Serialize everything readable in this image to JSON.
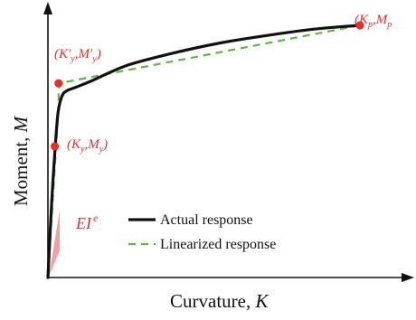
{
  "chart_data": {
    "type": "line",
    "xlabel": "Curvature, K",
    "ylabel": "Moment, M",
    "xlim": [
      0,
      1.0
    ],
    "ylim": [
      0,
      1.05
    ],
    "grid": false,
    "legend_position": "bottom-right",
    "series": [
      {
        "name": "Actual response",
        "style": "solid",
        "color": "#111111",
        "x": [
          0.0,
          0.012,
          0.025,
          0.033,
          0.045,
          0.06,
          0.09,
          0.14,
          0.25,
          0.4,
          0.55,
          0.7,
          0.85,
          0.995
        ],
        "y": [
          0.0,
          0.3,
          0.55,
          0.66,
          0.72,
          0.74,
          0.755,
          0.78,
          0.84,
          0.89,
          0.93,
          0.96,
          0.985,
          1.0
        ]
      },
      {
        "name": "Linearized response",
        "style": "dashed",
        "color": "#5db843",
        "x": [
          0.0,
          0.034,
          0.034,
          0.995
        ],
        "y": [
          0.0,
          0.68,
          0.77,
          1.0
        ]
      }
    ],
    "points": [
      {
        "label": "(K_y, M_y)",
        "x": 0.022,
        "y": 0.52
      },
      {
        "label": "(K_y', M_y')",
        "x": 0.034,
        "y": 0.77
      },
      {
        "label": "(K_p, M_p)",
        "x": 0.995,
        "y": 1.0
      }
    ],
    "point_labels": {
      "yield": {
        "open": "(",
        "k": "K",
        "k_sub": "y",
        "sep": ",",
        "m": "M",
        "m_sub": "y",
        "close": ")"
      },
      "yield_prime": {
        "open": "(",
        "k": "K",
        "k_sub": "y",
        "prime": "′",
        "sep": ",",
        "m": "M",
        "m_sub": "y",
        "close": ")"
      },
      "plastic": {
        "open": "(",
        "k": "K",
        "k_sub": "p",
        "sep": ",",
        "m": "M",
        "m_sub": "p"
      }
    },
    "annotation": {
      "base": "EI",
      "sup": "e"
    },
    "legend": {
      "actual": "Actual response",
      "linearized": "Linearized response"
    },
    "axis_text": {
      "x_prefix": "Curvature, ",
      "x_var": "K",
      "y_prefix": "Moment, ",
      "y_var": "M"
    },
    "colors": {
      "actual": "#111111",
      "linearized": "#5db843",
      "marker": "#e8302a",
      "label": "#e8302a",
      "stiffness_fill": "#f3a0a4",
      "axis": "#111111"
    }
  }
}
